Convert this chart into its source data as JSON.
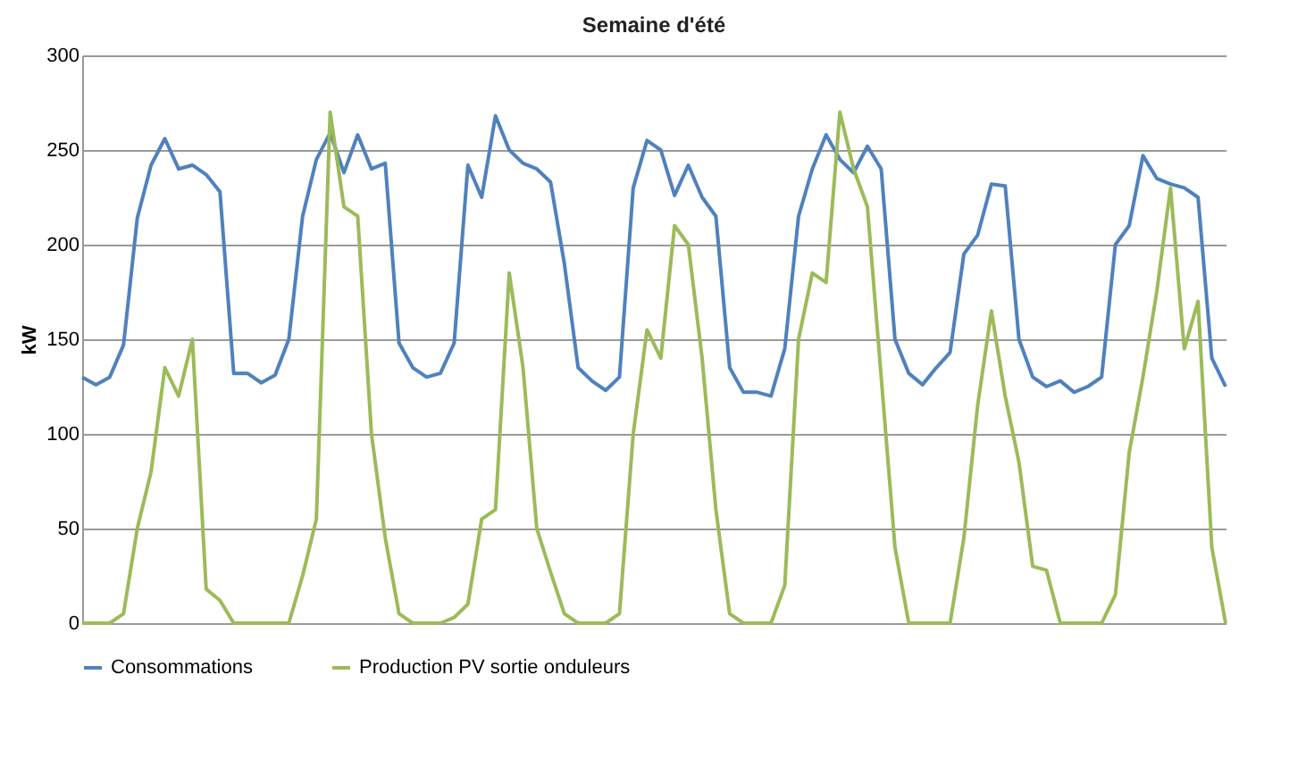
{
  "chart_data": {
    "type": "line",
    "title": "Semaine d'été",
    "ylabel": "kW",
    "categories": [
      null,
      null,
      null,
      null,
      null,
      null,
      null,
      null,
      null,
      null,
      null,
      null,
      null,
      null,
      null,
      null,
      null,
      null,
      null,
      null,
      null,
      null,
      null,
      null,
      null,
      null,
      null,
      null,
      null,
      null,
      null,
      null,
      null,
      null,
      null,
      null,
      null,
      null,
      null,
      null,
      null,
      null,
      null,
      null,
      null,
      null,
      null,
      null,
      null,
      null,
      null,
      null,
      null,
      null,
      null,
      null,
      null,
      null,
      null,
      null,
      null,
      null,
      null,
      null,
      null,
      null,
      null,
      null,
      null,
      null,
      null,
      null,
      null,
      null,
      null,
      null,
      null,
      null,
      null,
      null,
      null,
      null,
      null,
      null
    ],
    "series": [
      {
        "name": "Consommations",
        "color": "#4f81bd",
        "values": [
          130,
          126,
          130,
          147,
          214,
          242,
          256,
          240,
          242,
          237,
          228,
          132,
          132,
          127,
          131,
          150,
          215,
          245,
          259,
          238,
          258,
          240,
          243,
          148,
          135,
          130,
          132,
          148,
          242,
          225,
          268,
          250,
          243,
          240,
          233,
          190,
          135,
          128,
          123,
          130,
          230,
          255,
          250,
          226,
          242,
          225,
          215,
          135,
          122,
          122,
          120,
          145,
          215,
          240,
          258,
          245,
          238,
          252,
          240,
          150,
          132,
          126,
          135,
          143,
          195,
          205,
          232,
          231,
          150,
          130,
          125,
          128,
          122,
          125,
          130,
          200,
          210,
          247,
          235,
          232,
          230,
          225,
          140,
          125
        ]
      },
      {
        "name": "Production PV sortie onduleurs",
        "color": "#9bbb59",
        "values": [
          0,
          0,
          0,
          5,
          50,
          80,
          135,
          120,
          150,
          18,
          12,
          0,
          0,
          0,
          0,
          0,
          25,
          55,
          270,
          220,
          215,
          100,
          45,
          5,
          0,
          0,
          0,
          3,
          10,
          55,
          60,
          185,
          135,
          50,
          27,
          5,
          0,
          0,
          0,
          5,
          100,
          155,
          140,
          210,
          200,
          140,
          60,
          5,
          0,
          0,
          0,
          20,
          150,
          185,
          180,
          270,
          240,
          220,
          130,
          40,
          0,
          0,
          0,
          0,
          45,
          115,
          165,
          120,
          85,
          30,
          28,
          0,
          0,
          0,
          0,
          15,
          90,
          130,
          175,
          230,
          145,
          170,
          40,
          0
        ]
      }
    ],
    "ylim": [
      0,
      300
    ],
    "yticks": [
      0,
      50,
      100,
      150,
      200,
      250,
      300
    ],
    "grid": "y",
    "legend": "bottom",
    "marker": "none",
    "line_style": "solid"
  }
}
